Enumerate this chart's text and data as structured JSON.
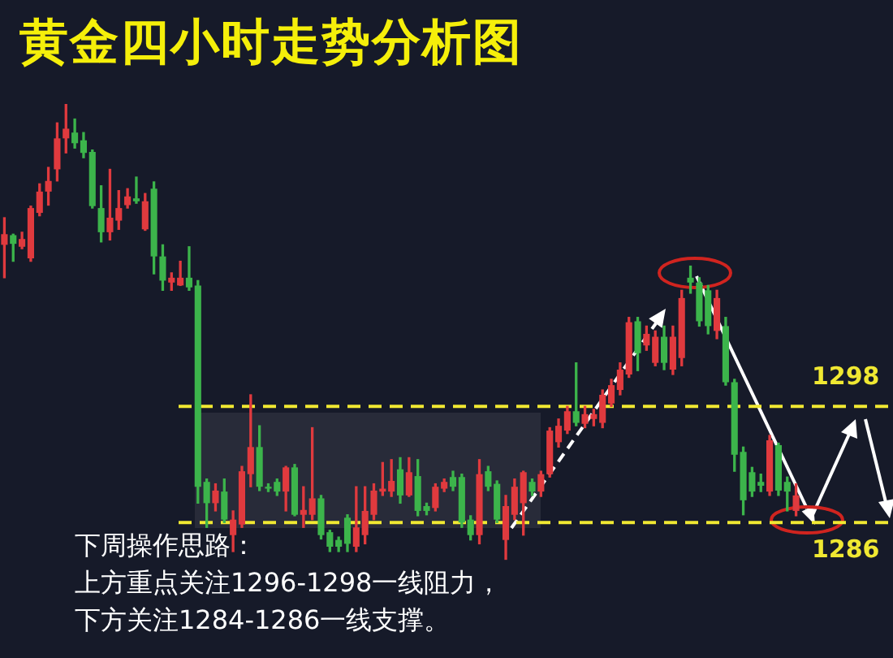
{
  "chart_data": {
    "type": "candlestick",
    "title": "黄金四小时走势分析图",
    "categories": [
      null,
      null,
      null,
      null,
      null,
      null,
      null,
      null,
      null,
      null,
      null,
      null,
      null,
      null,
      null,
      null,
      null,
      null,
      null,
      null,
      null,
      null,
      null,
      null,
      null,
      null,
      null,
      null,
      null,
      null,
      null,
      null,
      null,
      null,
      null,
      null,
      null,
      null,
      null,
      null,
      null,
      null,
      null,
      null,
      null,
      null,
      null,
      null,
      null,
      null,
      null,
      null,
      null,
      null,
      null,
      null,
      null,
      null,
      null,
      null,
      null,
      null,
      null,
      null,
      null,
      null,
      null,
      null,
      null,
      null,
      null,
      null,
      null,
      null,
      null,
      null,
      null,
      null,
      null,
      null,
      null,
      null,
      null,
      null,
      null,
      null,
      null,
      null,
      null,
      null,
      null
    ],
    "ohlc": [
      [
        1314.7,
        1317.5,
        1311.3,
        1315.8
      ],
      [
        1315.7,
        1315.8,
        1313,
        1314.8
      ],
      [
        1314.5,
        1316,
        1314.3,
        1315.3
      ],
      [
        1313.3,
        1318.7,
        1313,
        1318.5
      ],
      [
        1318,
        1321,
        1317.7,
        1320.2
      ],
      [
        1320.2,
        1322.7,
        1318.8,
        1321.3
      ],
      [
        1322.5,
        1327.3,
        1321.3,
        1325.7
      ],
      [
        1325.7,
        1329.2,
        1324.2,
        1326.7
      ],
      [
        1326.3,
        1327.7,
        1324.7,
        1325.2
      ],
      [
        1325.5,
        1326.3,
        1323.7,
        1324.2
      ],
      [
        1324.3,
        1324.5,
        1318.5,
        1318.7
      ],
      [
        1318.5,
        1320.8,
        1315,
        1316
      ],
      [
        1316,
        1322.5,
        1315.2,
        1317.5
      ],
      [
        1317.2,
        1320.3,
        1316.3,
        1318.5
      ],
      [
        1318.8,
        1320.5,
        1318.5,
        1319.7
      ],
      [
        1319.5,
        1321.7,
        1319,
        1319.2
      ],
      [
        1316.3,
        1320,
        1316.2,
        1319.2
      ],
      [
        1320.5,
        1321.2,
        1311.7,
        1313.5
      ],
      [
        1313.5,
        1314.7,
        1310,
        1311
      ],
      [
        1310.8,
        1311.8,
        1310,
        1311.3
      ],
      [
        1310.5,
        1313,
        1310.5,
        1311.3
      ],
      [
        1311.3,
        1314.5,
        1310,
        1310.3
      ],
      [
        1310.5,
        1311,
        1288,
        1289.7
      ],
      [
        1290.2,
        1290.5,
        1285.5,
        1288
      ],
      [
        1288,
        1290,
        1287.2,
        1289.3
      ],
      [
        1289.2,
        1290.5,
        1286,
        1286.3
      ],
      [
        1284.7,
        1287.2,
        1283,
        1286.3
      ],
      [
        1285.8,
        1291.8,
        1285.5,
        1291.3
      ],
      [
        1291,
        1299.2,
        1289.7,
        1293.8
      ],
      [
        1293.8,
        1296,
        1289.3,
        1289.7
      ],
      [
        1289.7,
        1290,
        1289.2,
        1289.5
      ],
      [
        1290.2,
        1290.5,
        1288.8,
        1289.2
      ],
      [
        1289.2,
        1291.8,
        1287.2,
        1291.7
      ],
      [
        1291.7,
        1292,
        1286.7,
        1286.8
      ],
      [
        1286.8,
        1289.7,
        1285.5,
        1287.3
      ],
      [
        1286.8,
        1295.8,
        1286.3,
        1288.5
      ],
      [
        1288.5,
        1288.8,
        1284.3,
        1284.7
      ],
      [
        1285,
        1285.2,
        1283,
        1283.5
      ],
      [
        1284.2,
        1284.5,
        1283,
        1283.5
      ],
      [
        1286.5,
        1286.8,
        1283,
        1283.8
      ],
      [
        1283.5,
        1289.7,
        1283,
        1285.5
      ],
      [
        1284.7,
        1289.7,
        1283.8,
        1287.2
      ],
      [
        1286.8,
        1290,
        1286.3,
        1289.3
      ],
      [
        1289.2,
        1292.2,
        1288.8,
        1289.5
      ],
      [
        1289.2,
        1292.5,
        1288.7,
        1290.3
      ],
      [
        1291.5,
        1292.7,
        1288,
        1288.8
      ],
      [
        1288.8,
        1292.7,
        1288.7,
        1291.2
      ],
      [
        1290.8,
        1292.5,
        1286.7,
        1287.2
      ],
      [
        1287.7,
        1288,
        1286.8,
        1287.2
      ],
      [
        1287.5,
        1290,
        1287.2,
        1289.7
      ],
      [
        1289.5,
        1290.5,
        1289.2,
        1290.2
      ],
      [
        1290.7,
        1291.3,
        1289.3,
        1289.7
      ],
      [
        1290.7,
        1291,
        1285.5,
        1286
      ],
      [
        1286.3,
        1286.7,
        1284.2,
        1284.7
      ],
      [
        1284.7,
        1292.5,
        1283.8,
        1291
      ],
      [
        1291.3,
        1291.8,
        1289.3,
        1289.7
      ],
      [
        1290,
        1290.3,
        1286,
        1286.3
      ],
      [
        1284.2,
        1288.8,
        1282.2,
        1287.7
      ],
      [
        1286.8,
        1290.5,
        1286.3,
        1289.7
      ],
      [
        1288,
        1291.3,
        1284.7,
        1291.2
      ],
      [
        1290.2,
        1290.5,
        1288.8,
        1289.2
      ],
      [
        1289.2,
        1291.3,
        1288.7,
        1291
      ],
      [
        1291,
        1295.8,
        1290.7,
        1295.5
      ],
      [
        1294.3,
        1296.7,
        1293.8,
        1296
      ],
      [
        1295.5,
        1298,
        1295.2,
        1297.5
      ],
      [
        1297.5,
        1302.5,
        1296,
        1296.3
      ],
      [
        1296.2,
        1298,
        1295.8,
        1297.2
      ],
      [
        1296.7,
        1297.7,
        1296,
        1297.2
      ],
      [
        1296.3,
        1299.7,
        1295.8,
        1299.2
      ],
      [
        1298.3,
        1300.8,
        1298,
        1300.2
      ],
      [
        1299.7,
        1302.5,
        1299.2,
        1301.8
      ],
      [
        1301.3,
        1307.2,
        1301,
        1306.7
      ],
      [
        1306.8,
        1307.2,
        1301.7,
        1303.5
      ],
      [
        1304.3,
        1306.3,
        1303.8,
        1305.5
      ],
      [
        1302.5,
        1305.8,
        1302.2,
        1305.2
      ],
      [
        1305.2,
        1306.3,
        1301.8,
        1302.5
      ],
      [
        1301.8,
        1306.3,
        1301.3,
        1305.2
      ],
      [
        1303,
        1310,
        1302.2,
        1309.2
      ],
      [
        1311.3,
        1312.5,
        1309.7,
        1310.8
      ],
      [
        1310.8,
        1311.3,
        1306.3,
        1306.8
      ],
      [
        1310,
        1310.5,
        1305.5,
        1306.3
      ],
      [
        1305.8,
        1310,
        1305,
        1309.2
      ],
      [
        1306.3,
        1307.2,
        1300.2,
        1300.5
      ],
      [
        1300.5,
        1300.8,
        1291.3,
        1293
      ],
      [
        1293.3,
        1293.8,
        1286.8,
        1288.3
      ],
      [
        1291.2,
        1291.7,
        1288.7,
        1289.2
      ],
      [
        1290.2,
        1291,
        1289.2,
        1289.8
      ],
      [
        1289.2,
        1295,
        1288.8,
        1294.5
      ],
      [
        1294,
        1294.2,
        1288.8,
        1289.3
      ],
      [
        1290.2,
        1290.7,
        1287.2,
        1289.2
      ],
      [
        1287.2,
        1290,
        1286.7,
        1288.8
      ]
    ],
    "colors": [
      "#e03a3e",
      "#3cb44b",
      "#e03a3e",
      "#e03a3e",
      "#e03a3e",
      "#e03a3e",
      "#e03a3e",
      "#e03a3e",
      "#3cb44b",
      "#3cb44b",
      "#3cb44b",
      "#3cb44b",
      "#e03a3e",
      "#e03a3e",
      "#e03a3e",
      "#3cb44b",
      "#e03a3e",
      "#3cb44b",
      "#3cb44b",
      "#e03a3e",
      "#e03a3e",
      "#3cb44b",
      "#3cb44b",
      "#3cb44b",
      "#e03a3e",
      "#3cb44b",
      "#e03a3e",
      "#e03a3e",
      "#e03a3e",
      "#3cb44b",
      "#3cb44b",
      "#3cb44b",
      "#e03a3e",
      "#3cb44b",
      "#e03a3e",
      "#e03a3e",
      "#3cb44b",
      "#3cb44b",
      "#3cb44b",
      "#3cb44b",
      "#e03a3e",
      "#e03a3e",
      "#e03a3e",
      "#e03a3e",
      "#e03a3e",
      "#3cb44b",
      "#e03a3e",
      "#3cb44b",
      "#3cb44b",
      "#e03a3e",
      "#e03a3e",
      "#3cb44b",
      "#3cb44b",
      "#3cb44b",
      "#e03a3e",
      "#3cb44b",
      "#3cb44b",
      "#e03a3e",
      "#e03a3e",
      "#e03a3e",
      "#3cb44b",
      "#e03a3e",
      "#e03a3e",
      "#e03a3e",
      "#e03a3e",
      "#3cb44b",
      "#e03a3e",
      "#e03a3e",
      "#e03a3e",
      "#e03a3e",
      "#e03a3e",
      "#e03a3e",
      "#3cb44b",
      "#e03a3e",
      "#e03a3e",
      "#3cb44b",
      "#e03a3e",
      "#e03a3e",
      "#3cb44b",
      "#3cb44b",
      "#3cb44b",
      "#e03a3e",
      "#3cb44b",
      "#3cb44b",
      "#3cb44b",
      "#3cb44b",
      "#3cb44b",
      "#e03a3e",
      "#3cb44b",
      "#3cb44b",
      "#e03a3e"
    ],
    "ylim": [
      1272,
      1340
    ],
    "ref_lines": [
      {
        "axis": "y",
        "value": 1298,
        "label": "1298",
        "color": "#f0e832",
        "line_style": "dashed"
      },
      {
        "axis": "y",
        "value": 1286,
        "label": "1286",
        "color": "#f0e832",
        "line_style": "dashed"
      }
    ],
    "annotations": [
      "下周操作思路：",
      "上方重点关注1296-1298一线阻力，",
      "下方关注1284-1286一线支撑。"
    ],
    "legend": false
  }
}
